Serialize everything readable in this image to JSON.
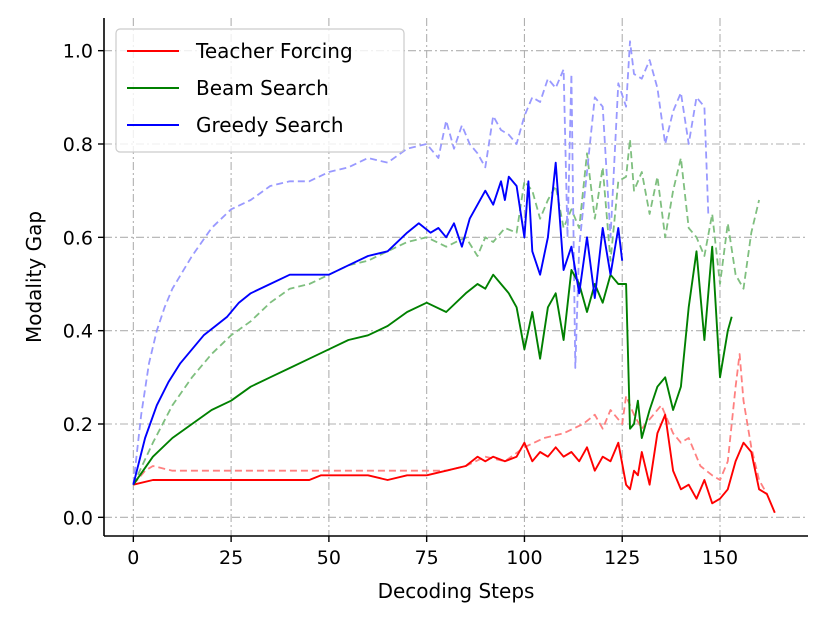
{
  "chart_data": {
    "type": "line",
    "title": "",
    "xlabel": "Decoding Steps",
    "ylabel": "Modality Gap",
    "xlim": [
      -7.5,
      172.5
    ],
    "ylim": [
      -0.04,
      1.07
    ],
    "xticks": [
      0,
      25,
      50,
      75,
      100,
      125,
      150
    ],
    "yticks": [
      0.0,
      0.2,
      0.4,
      0.6,
      0.8,
      1.0
    ],
    "xtick_labels": [
      "0",
      "25",
      "50",
      "75",
      "100",
      "125",
      "150"
    ],
    "ytick_labels": [
      "0.0",
      "0.2",
      "0.4",
      "0.6",
      "0.8",
      "1.0"
    ],
    "grid": true,
    "grid_style": "dashdot",
    "legend_position": "top-left",
    "legend": [
      {
        "label": "Teacher Forcing",
        "color": "#ff0000"
      },
      {
        "label": "Beam Search",
        "color": "#008000"
      },
      {
        "label": "Greedy Search",
        "color": "#0000ff"
      }
    ],
    "series": [
      {
        "name": "Teacher Forcing",
        "color": "#ff0000",
        "style": "solid",
        "x": [
          0,
          5,
          10,
          15,
          20,
          25,
          30,
          35,
          40,
          45,
          48,
          50,
          55,
          60,
          65,
          70,
          75,
          80,
          85,
          88,
          90,
          92,
          95,
          98,
          100,
          102,
          104,
          106,
          108,
          110,
          112,
          114,
          116,
          118,
          120,
          122,
          124,
          126,
          127,
          128,
          129,
          130,
          132,
          134,
          136,
          138,
          140,
          142,
          144,
          146,
          148,
          150,
          152,
          154,
          156,
          158,
          160,
          162,
          164
        ],
        "y": [
          0.07,
          0.08,
          0.08,
          0.08,
          0.08,
          0.08,
          0.08,
          0.08,
          0.08,
          0.08,
          0.09,
          0.09,
          0.09,
          0.09,
          0.08,
          0.09,
          0.09,
          0.1,
          0.11,
          0.13,
          0.12,
          0.13,
          0.12,
          0.13,
          0.16,
          0.12,
          0.14,
          0.13,
          0.15,
          0.13,
          0.14,
          0.12,
          0.15,
          0.1,
          0.13,
          0.12,
          0.16,
          0.07,
          0.06,
          0.1,
          0.09,
          0.14,
          0.07,
          0.18,
          0.22,
          0.1,
          0.06,
          0.07,
          0.04,
          0.08,
          0.03,
          0.04,
          0.06,
          0.12,
          0.16,
          0.14,
          0.06,
          0.05,
          0.01
        ]
      },
      {
        "name": "Beam Search",
        "color": "#008000",
        "style": "solid",
        "x": [
          0,
          5,
          10,
          15,
          20,
          25,
          30,
          35,
          40,
          45,
          50,
          55,
          60,
          65,
          70,
          75,
          80,
          85,
          88,
          90,
          92,
          94,
          96,
          98,
          100,
          102,
          104,
          106,
          108,
          110,
          112,
          114,
          116,
          118,
          120,
          122,
          124,
          126,
          127,
          128,
          129,
          130,
          132,
          134,
          136,
          138,
          140,
          142,
          144,
          146,
          148,
          150,
          152,
          153
        ],
        "y": [
          0.07,
          0.13,
          0.17,
          0.2,
          0.23,
          0.25,
          0.28,
          0.3,
          0.32,
          0.34,
          0.36,
          0.38,
          0.39,
          0.41,
          0.44,
          0.46,
          0.44,
          0.48,
          0.5,
          0.49,
          0.52,
          0.5,
          0.48,
          0.45,
          0.36,
          0.44,
          0.34,
          0.45,
          0.48,
          0.38,
          0.53,
          0.5,
          0.44,
          0.5,
          0.46,
          0.52,
          0.5,
          0.5,
          0.19,
          0.2,
          0.25,
          0.17,
          0.23,
          0.28,
          0.3,
          0.23,
          0.28,
          0.45,
          0.57,
          0.38,
          0.58,
          0.3,
          0.4,
          0.43
        ]
      },
      {
        "name": "Greedy Search",
        "color": "#0000ff",
        "style": "solid",
        "x": [
          0,
          3,
          6,
          9,
          12,
          15,
          18,
          21,
          24,
          27,
          30,
          35,
          40,
          45,
          50,
          55,
          60,
          65,
          70,
          73,
          76,
          78,
          80,
          82,
          84,
          86,
          88,
          90,
          92,
          94,
          95,
          96,
          98,
          100,
          101,
          102,
          104,
          106,
          108,
          110,
          112,
          114,
          116,
          118,
          120,
          122,
          124,
          125
        ],
        "y": [
          0.07,
          0.17,
          0.24,
          0.29,
          0.33,
          0.36,
          0.39,
          0.41,
          0.43,
          0.46,
          0.48,
          0.5,
          0.52,
          0.52,
          0.52,
          0.54,
          0.56,
          0.57,
          0.61,
          0.63,
          0.61,
          0.62,
          0.6,
          0.63,
          0.58,
          0.64,
          0.67,
          0.7,
          0.67,
          0.72,
          0.68,
          0.73,
          0.71,
          0.6,
          0.72,
          0.57,
          0.52,
          0.6,
          0.76,
          0.53,
          0.58,
          0.48,
          0.6,
          0.47,
          0.62,
          0.52,
          0.62,
          0.55
        ]
      },
      {
        "name": "",
        "color": "#ff8080",
        "style": "dashed",
        "x": [
          0,
          3,
          5,
          10,
          20,
          30,
          40,
          50,
          60,
          70,
          80,
          85,
          90,
          95,
          100,
          105,
          110,
          115,
          118,
          120,
          122,
          125,
          126,
          128,
          130,
          132,
          135,
          138,
          140,
          142,
          145,
          148,
          150,
          152,
          154,
          155,
          156,
          158,
          160,
          162
        ],
        "y": [
          0.07,
          0.1,
          0.11,
          0.1,
          0.1,
          0.1,
          0.1,
          0.1,
          0.1,
          0.1,
          0.1,
          0.11,
          0.13,
          0.12,
          0.15,
          0.17,
          0.18,
          0.2,
          0.22,
          0.19,
          0.23,
          0.2,
          0.26,
          0.22,
          0.19,
          0.21,
          0.24,
          0.18,
          0.16,
          0.17,
          0.11,
          0.09,
          0.08,
          0.12,
          0.28,
          0.35,
          0.25,
          0.15,
          0.08,
          0.05
        ]
      },
      {
        "name": "",
        "color": "#7fbf7f",
        "style": "dashed",
        "x": [
          0,
          5,
          10,
          15,
          20,
          25,
          30,
          35,
          40,
          45,
          50,
          55,
          60,
          65,
          70,
          75,
          80,
          85,
          88,
          90,
          92,
          95,
          98,
          100,
          102,
          104,
          106,
          108,
          110,
          112,
          114,
          116,
          118,
          120,
          122,
          124,
          126,
          127,
          128,
          130,
          132,
          134,
          136,
          138,
          140,
          142,
          144,
          146,
          148,
          150,
          152,
          154,
          156,
          158,
          160
        ],
        "y": [
          0.07,
          0.16,
          0.24,
          0.3,
          0.35,
          0.39,
          0.42,
          0.46,
          0.49,
          0.5,
          0.52,
          0.54,
          0.55,
          0.57,
          0.59,
          0.6,
          0.58,
          0.6,
          0.56,
          0.6,
          0.59,
          0.62,
          0.61,
          0.72,
          0.7,
          0.64,
          0.68,
          0.71,
          0.62,
          0.66,
          0.62,
          0.78,
          0.64,
          0.75,
          0.55,
          0.72,
          0.73,
          0.81,
          0.7,
          0.74,
          0.65,
          0.73,
          0.6,
          0.7,
          0.77,
          0.62,
          0.6,
          0.56,
          0.65,
          0.5,
          0.63,
          0.52,
          0.49,
          0.61,
          0.68
        ]
      },
      {
        "name": "",
        "color": "#9999ff",
        "style": "dashed",
        "x": [
          0,
          2,
          4,
          6,
          8,
          10,
          15,
          20,
          25,
          30,
          35,
          40,
          45,
          50,
          55,
          60,
          65,
          70,
          75,
          78,
          80,
          82,
          84,
          86,
          88,
          90,
          92,
          94,
          96,
          98,
          100,
          102,
          104,
          106,
          108,
          110,
          111,
          112,
          113,
          114,
          116,
          118,
          120,
          122,
          124,
          126,
          127,
          128,
          130,
          132,
          134,
          136,
          138,
          140,
          142,
          144,
          146,
          147
        ],
        "y": [
          0.07,
          0.22,
          0.33,
          0.4,
          0.45,
          0.49,
          0.56,
          0.62,
          0.66,
          0.68,
          0.71,
          0.72,
          0.72,
          0.74,
          0.75,
          0.77,
          0.76,
          0.79,
          0.8,
          0.77,
          0.85,
          0.79,
          0.84,
          0.8,
          0.78,
          0.75,
          0.86,
          0.83,
          0.82,
          0.8,
          0.86,
          0.9,
          0.89,
          0.94,
          0.92,
          0.96,
          0.6,
          0.95,
          0.32,
          0.58,
          0.74,
          0.9,
          0.88,
          0.6,
          0.93,
          0.88,
          1.02,
          0.95,
          0.94,
          0.98,
          0.92,
          0.8,
          0.87,
          0.91,
          0.8,
          0.9,
          0.88,
          0.65
        ]
      }
    ]
  }
}
